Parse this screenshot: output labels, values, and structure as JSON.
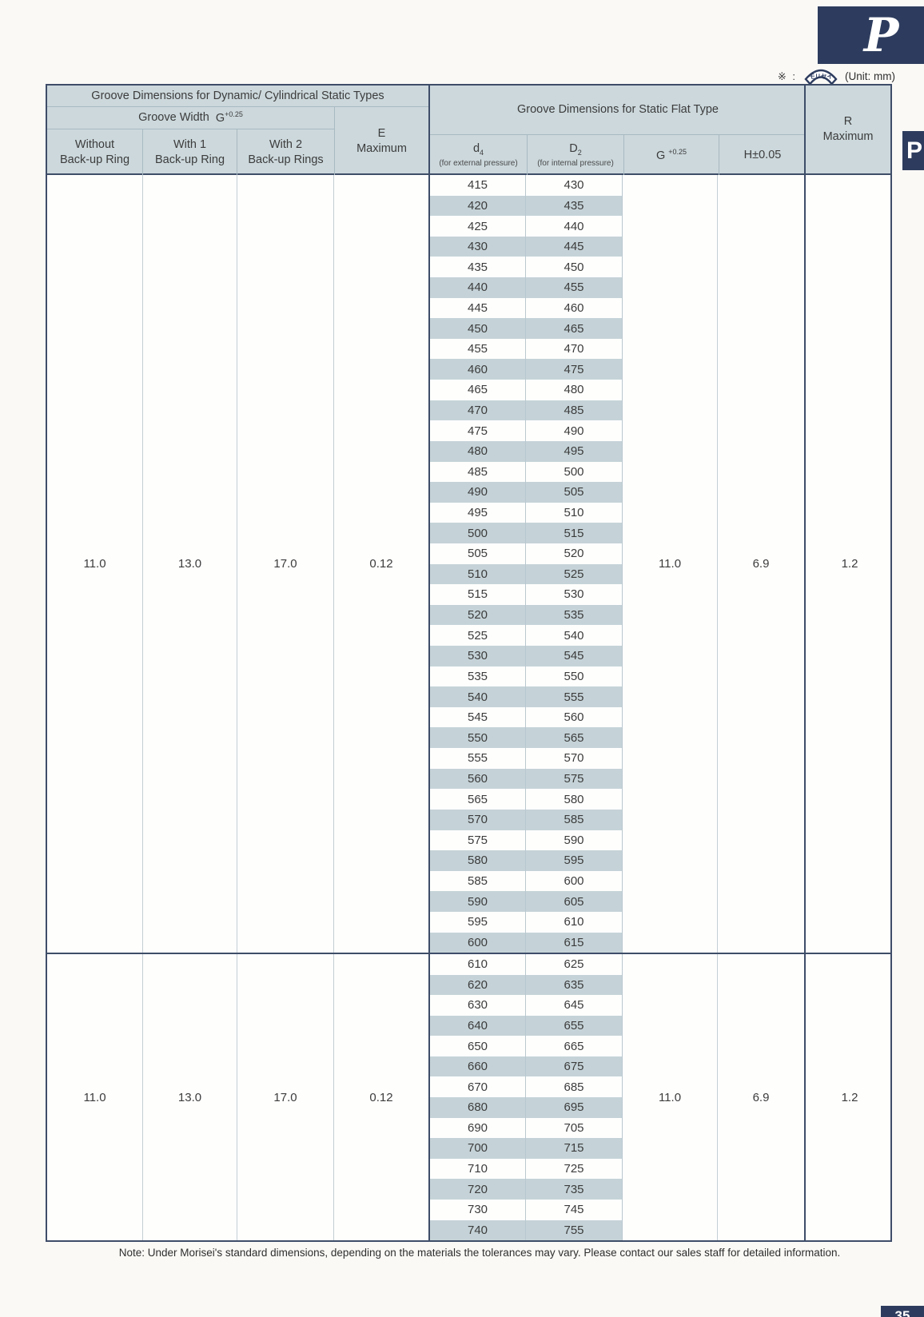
{
  "page": {
    "corner_letter": "P",
    "side_tab_letter": "P",
    "page_number": "35",
    "unit_prefix": "※ :",
    "logo_text": "モリセイ",
    "unit_label": "(Unit: mm)",
    "footnote": "Note: Under Morisei's standard dimensions, depending on the materials the tolerances may vary. Please contact our sales staff for detailed information."
  },
  "colors": {
    "navy": "#2d3c5e",
    "table_border": "#3e4d68",
    "header_bg": "#ccd8dc",
    "row_stripe": "#c5d3d8"
  },
  "table": {
    "header": {
      "dynamic_title": "Groove Dimensions for Dynamic/ Cylindrical Static Types",
      "groove_width_label": "Groove Width",
      "groove_width_symbol": "G",
      "groove_width_tolerance": "+0.25",
      "col_without_line1": "Without",
      "col_without_line2": "Back-up Ring",
      "col_with1_line1": "With 1",
      "col_with1_line2": "Back-up Ring",
      "col_with2_line1": "With 2",
      "col_with2_line2": "Back-up Rings",
      "e_line1": "E",
      "e_line2": "Maximum",
      "static_title": "Groove Dimensions for Static Flat Type",
      "d4_symbol": "d",
      "d4_subscript": "4",
      "d4_note": "(for external pressure)",
      "D2_symbol": "D",
      "D2_subscript": "2",
      "D2_note": "(for internal pressure)",
      "g_symbol": "G",
      "g_tolerance": "+0.25",
      "h_label": "H±0.05",
      "r_line1": "R",
      "r_line2": "Maximum"
    },
    "blocks": [
      {
        "groove_width_without": "11.0",
        "groove_width_with1": "13.0",
        "groove_width_with2": "17.0",
        "e_maximum": "0.12",
        "g_flat": "11.0",
        "h_flat": "6.9",
        "r_maximum": "1.2",
        "rows": [
          [
            "415",
            "430"
          ],
          [
            "420",
            "435"
          ],
          [
            "425",
            "440"
          ],
          [
            "430",
            "445"
          ],
          [
            "435",
            "450"
          ],
          [
            "440",
            "455"
          ],
          [
            "445",
            "460"
          ],
          [
            "450",
            "465"
          ],
          [
            "455",
            "470"
          ],
          [
            "460",
            "475"
          ],
          [
            "465",
            "480"
          ],
          [
            "470",
            "485"
          ],
          [
            "475",
            "490"
          ],
          [
            "480",
            "495"
          ],
          [
            "485",
            "500"
          ],
          [
            "490",
            "505"
          ],
          [
            "495",
            "510"
          ],
          [
            "500",
            "515"
          ],
          [
            "505",
            "520"
          ],
          [
            "510",
            "525"
          ],
          [
            "515",
            "530"
          ],
          [
            "520",
            "535"
          ],
          [
            "525",
            "540"
          ],
          [
            "530",
            "545"
          ],
          [
            "535",
            "550"
          ],
          [
            "540",
            "555"
          ],
          [
            "545",
            "560"
          ],
          [
            "550",
            "565"
          ],
          [
            "555",
            "570"
          ],
          [
            "560",
            "575"
          ],
          [
            "565",
            "580"
          ],
          [
            "570",
            "585"
          ],
          [
            "575",
            "590"
          ],
          [
            "580",
            "595"
          ],
          [
            "585",
            "600"
          ],
          [
            "590",
            "605"
          ],
          [
            "595",
            "610"
          ],
          [
            "600",
            "615"
          ]
        ]
      },
      {
        "groove_width_without": "11.0",
        "groove_width_with1": "13.0",
        "groove_width_with2": "17.0",
        "e_maximum": "0.12",
        "g_flat": "11.0",
        "h_flat": "6.9",
        "r_maximum": "1.2",
        "rows": [
          [
            "610",
            "625"
          ],
          [
            "620",
            "635"
          ],
          [
            "630",
            "645"
          ],
          [
            "640",
            "655"
          ],
          [
            "650",
            "665"
          ],
          [
            "660",
            "675"
          ],
          [
            "670",
            "685"
          ],
          [
            "680",
            "695"
          ],
          [
            "690",
            "705"
          ],
          [
            "700",
            "715"
          ],
          [
            "710",
            "725"
          ],
          [
            "720",
            "735"
          ],
          [
            "730",
            "745"
          ],
          [
            "740",
            "755"
          ]
        ]
      }
    ]
  }
}
